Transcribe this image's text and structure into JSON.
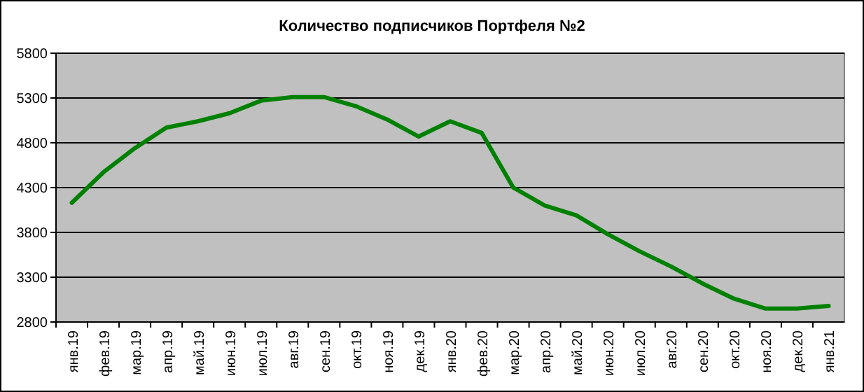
{
  "chart_data": {
    "type": "line",
    "title": "Количество подписчиков Портфеля №2",
    "categories": [
      "янв.19",
      "фев.19",
      "мар.19",
      "апр.19",
      "май.19",
      "июн.19",
      "июл.19",
      "авг.19",
      "сен.19",
      "окт.19",
      "ноя.19",
      "дек.19",
      "янв.20",
      "фев.20",
      "мар.20",
      "апр.20",
      "май.20",
      "июн.20",
      "июл.20",
      "авг.20",
      "сен.20",
      "окт.20",
      "ноя.20",
      "дек.20",
      "янв.21"
    ],
    "series": [
      {
        "color": "#008000",
        "values": [
          4130,
          4470,
          4740,
          4970,
          5040,
          5130,
          5270,
          5310,
          5310,
          5210,
          5060,
          4870,
          5040,
          4910,
          4300,
          4100,
          3990,
          3780,
          3590,
          3420,
          3230,
          3060,
          2950,
          2950,
          2980
        ]
      }
    ],
    "ylim": [
      2800,
      5800
    ],
    "yticks": [
      2800,
      3300,
      3800,
      4300,
      4800,
      5300,
      5800
    ],
    "grid": "y",
    "marker": "none",
    "line_style": "solid"
  }
}
